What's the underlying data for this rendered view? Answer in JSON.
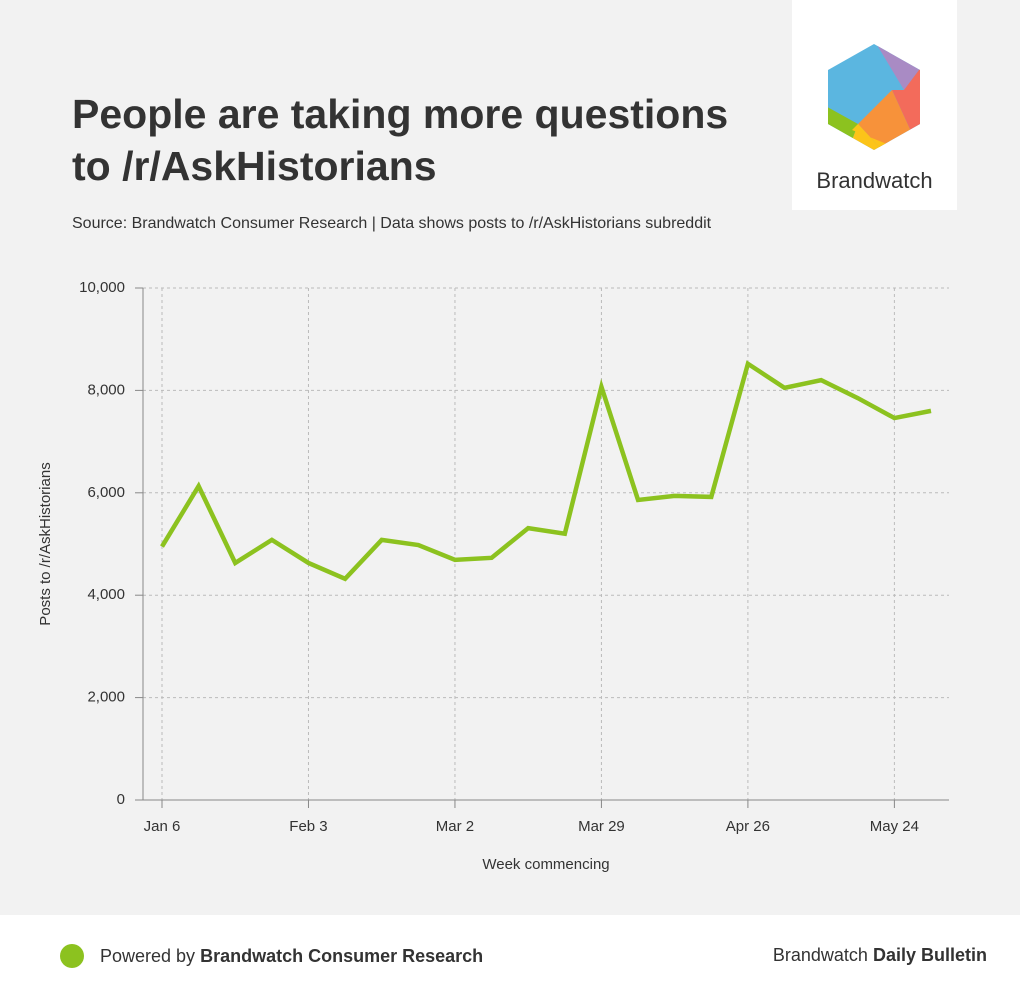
{
  "chart_data": {
    "type": "line",
    "title": "People are taking more questions to /r/AskHistorians",
    "subtitle": "Source: Brandwatch Consumer Research | Data shows posts to /r/AskHistorians subreddit",
    "x_label": "Week commencing",
    "y_label": "Posts to /r/AskHistorians",
    "categories": [
      "Jan 6",
      null,
      null,
      null,
      "Feb 3",
      null,
      null,
      null,
      "Mar 2",
      null,
      null,
      null,
      "Mar 29",
      null,
      null,
      null,
      "Apr 26",
      null,
      null,
      null,
      "May 24",
      null
    ],
    "values": [
      4950,
      6130,
      4630,
      5080,
      4630,
      4320,
      5080,
      4980,
      4690,
      4730,
      5310,
      5200,
      8070,
      5860,
      5940,
      5920,
      8520,
      8050,
      8200,
      7850,
      7460,
      7600
    ],
    "color": "#8cc21f",
    "ylim": [
      0,
      10000
    ],
    "yticks": [
      0,
      {
        "value": 2000,
        "label": "2,000"
      },
      {
        "value": 4000,
        "label": "4,000"
      },
      {
        "value": 6000,
        "label": "6,000"
      },
      {
        "value": 8000,
        "label": "8,000"
      },
      {
        "value": 10000,
        "label": "10,000"
      }
    ],
    "grid": true
  },
  "logo": {
    "text": "Brandwatch"
  },
  "footer": {
    "left_prefix": "Powered by",
    "left_bold": "Brandwatch Consumer Research",
    "right_prefix": "Brandwatch",
    "right_bold": "Daily Bulletin"
  }
}
